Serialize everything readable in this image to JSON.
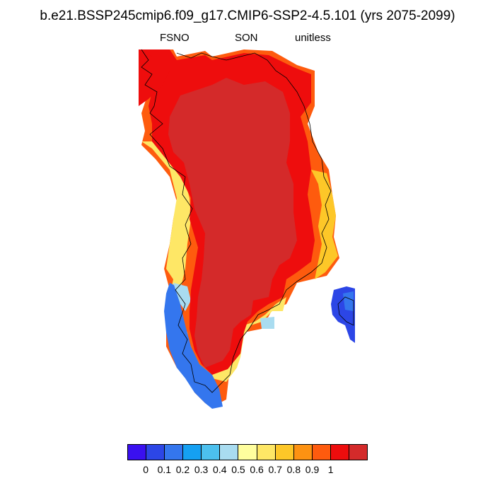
{
  "title": "b.e21.BSSP245cmip6.f09_g17.CMIP6-SSP2-4.5.101 (yrs 2075-2099)",
  "subtitle_left": "FSNO",
  "subtitle_center": "SON",
  "subtitle_right": "unitless",
  "colorbar": {
    "colors": [
      "#3a10f0",
      "#2c46e6",
      "#3476ee",
      "#15a0f2",
      "#4cc0ee",
      "#a9dcf0",
      "#fffe9e",
      "#fee766",
      "#fdc728",
      "#fd9212",
      "#fe5b0e",
      "#ee0d0d",
      "#d42a2a"
    ],
    "labels": [
      "0",
      "0.1",
      "0.2",
      "0.3",
      "0.4",
      "0.5",
      "0.6",
      "0.7",
      "0.8",
      "0.9",
      "1"
    ]
  }
}
